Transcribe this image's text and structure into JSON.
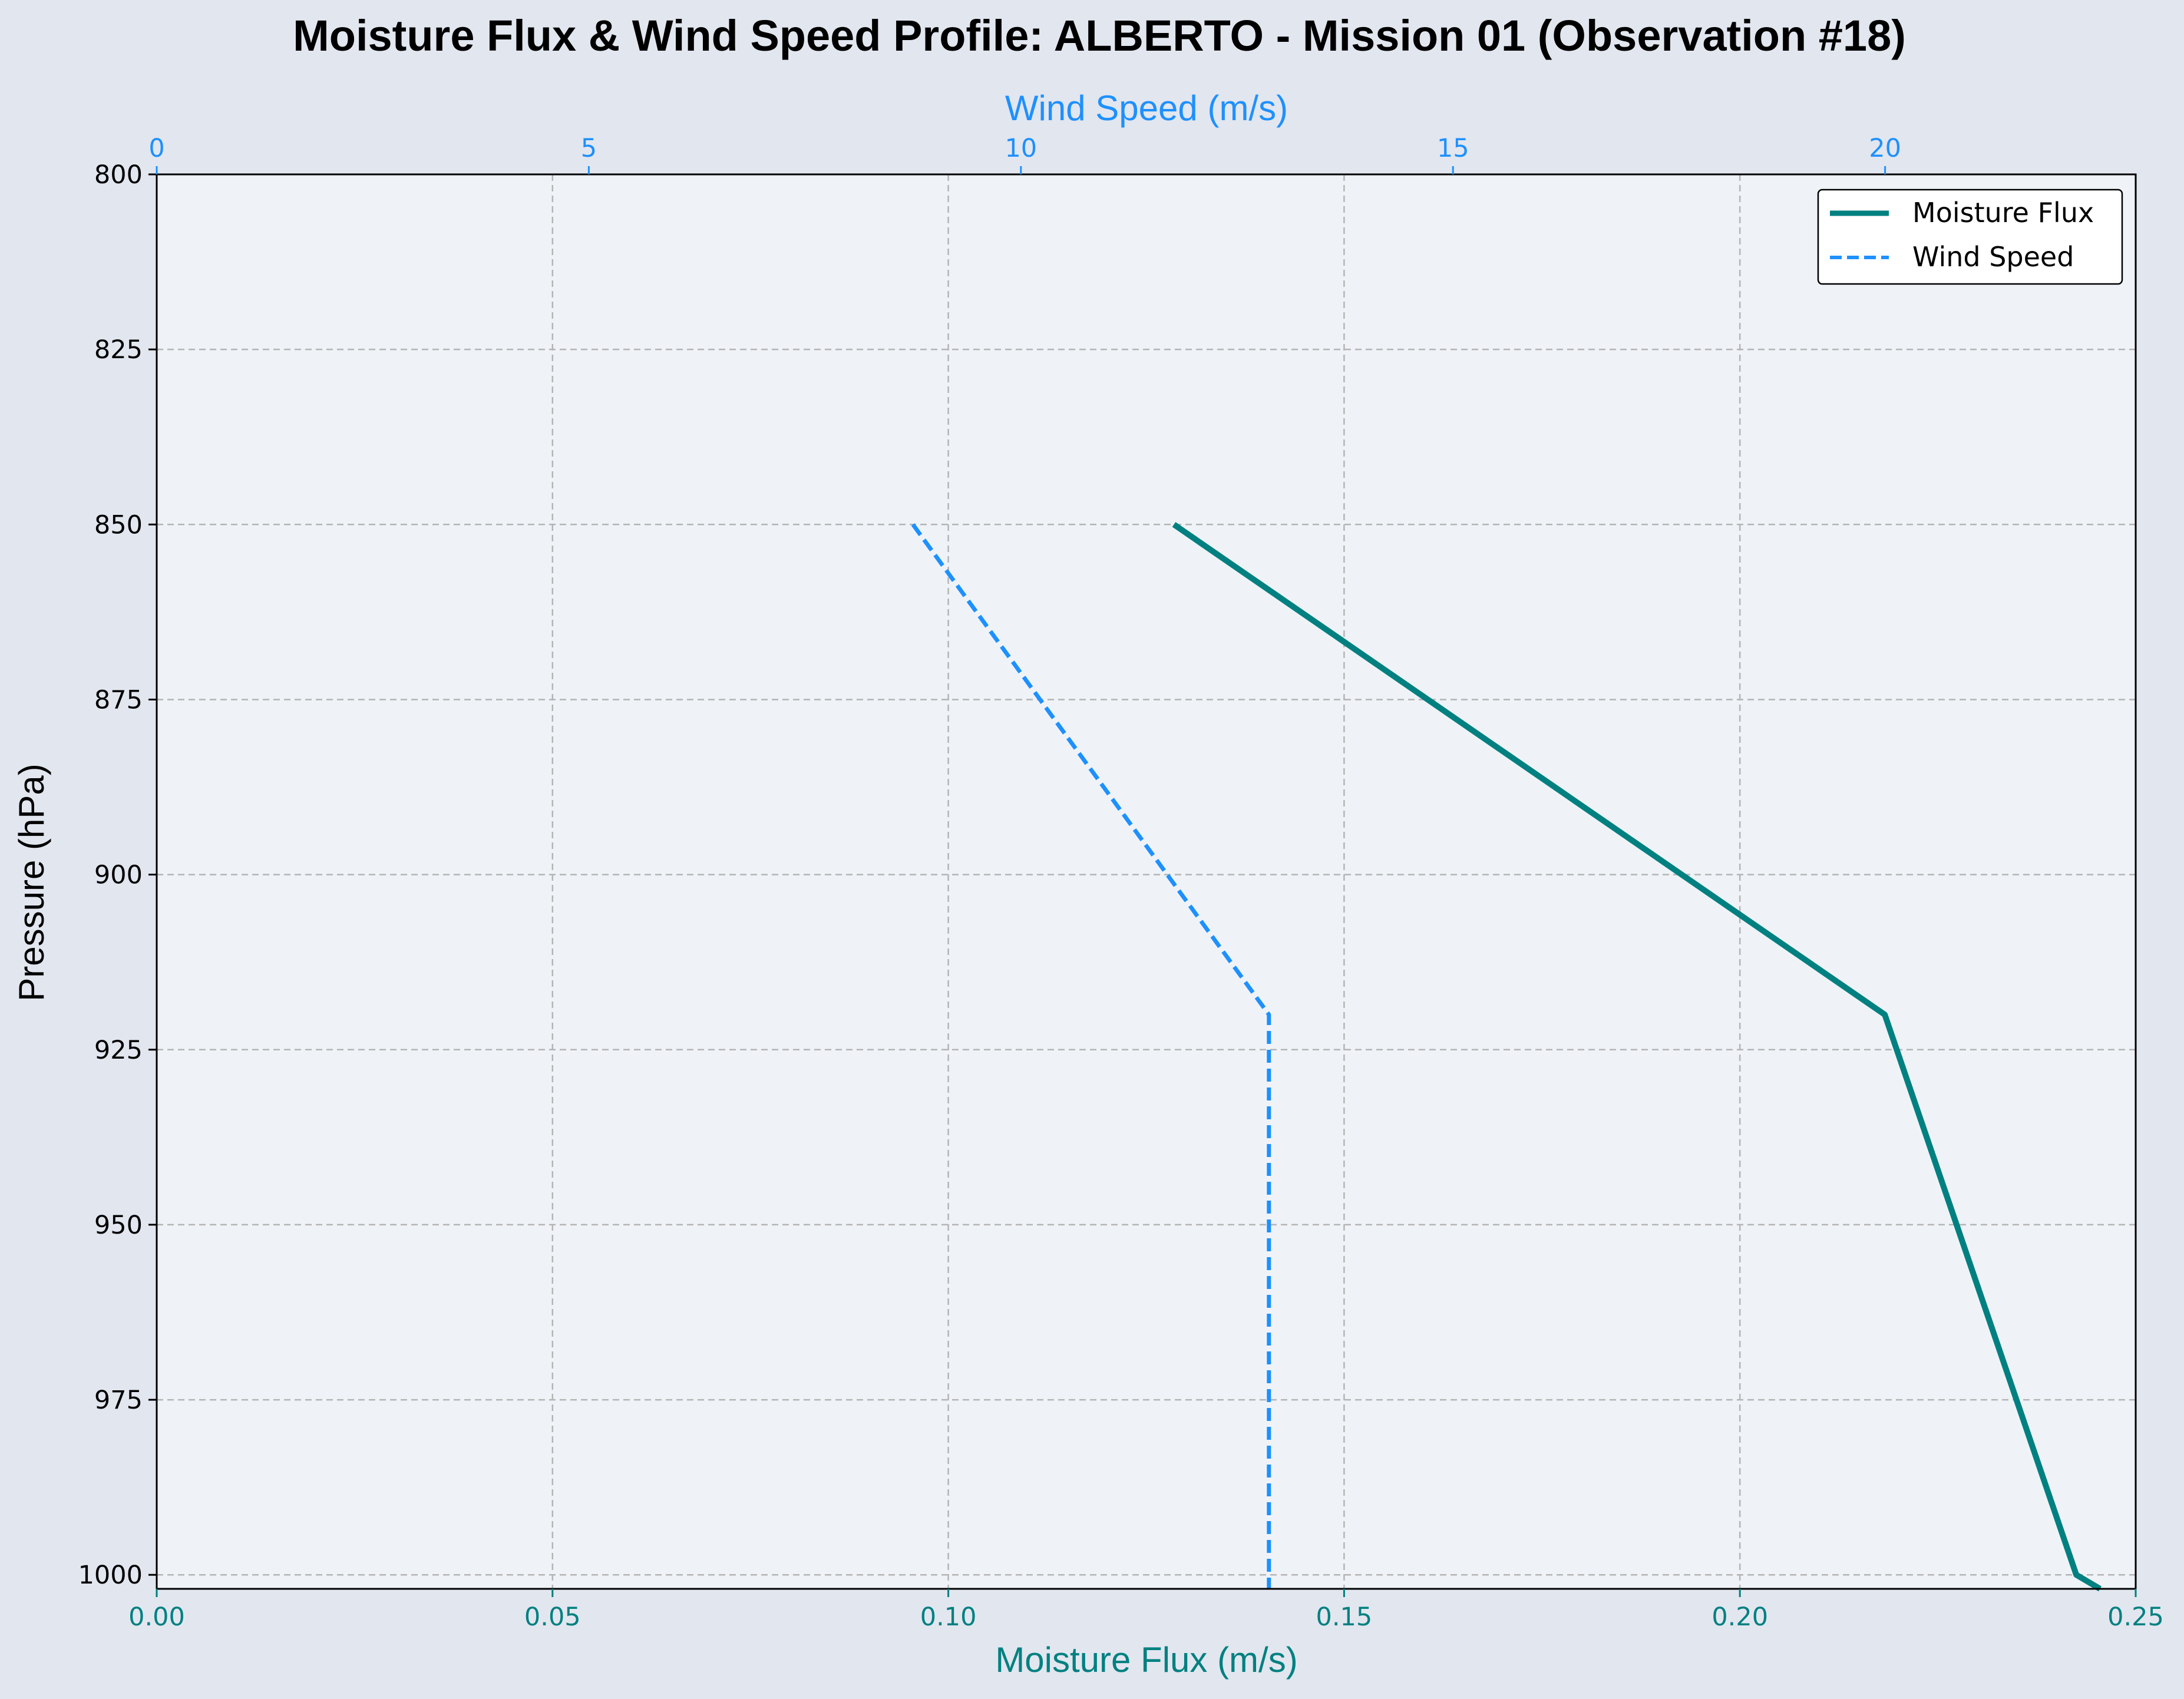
{
  "chart_data": {
    "type": "line",
    "title": "Moisture Flux & Wind Speed Profile: ALBERTO - Mission 01 (Observation #18)",
    "xlabel_bottom": "Moisture Flux (m/s)",
    "xlabel_top": "Wind Speed (m/s)",
    "ylabel": "Pressure (hPa)",
    "ylim": [
      1002,
      800
    ],
    "y_inverted": true,
    "y_ticks": [
      800,
      825,
      850,
      875,
      900,
      925,
      950,
      975,
      1000
    ],
    "x_bottom_lim": [
      0,
      0.25
    ],
    "x_bottom_ticks": [
      "0.00",
      "0.05",
      "0.10",
      "0.15",
      "0.20",
      "0.25"
    ],
    "x_top_lim": [
      0,
      22.9
    ],
    "x_top_ticks": [
      0,
      5,
      10,
      15,
      20
    ],
    "grid": true,
    "legend_placement": "top-right",
    "series": [
      {
        "name": "Moisture Flux",
        "axis": "bottom",
        "color": "#008080",
        "style": "solid",
        "pressure": [
          850,
          920,
          1000,
          1002
        ],
        "values": [
          0.1285,
          0.2183,
          0.2425,
          0.2455
        ]
      },
      {
        "name": "Wind Speed",
        "axis": "top",
        "color": "#1e90ff",
        "style": "dashed",
        "pressure": [
          850,
          920,
          1002
        ],
        "values": [
          8.75,
          12.87,
          12.87
        ]
      }
    ],
    "colors": {
      "bottom_axis": "#008080",
      "top_axis": "#1e90ff",
      "plot_background": "#eff3f7",
      "figure_background": "#e2e6ef"
    }
  }
}
